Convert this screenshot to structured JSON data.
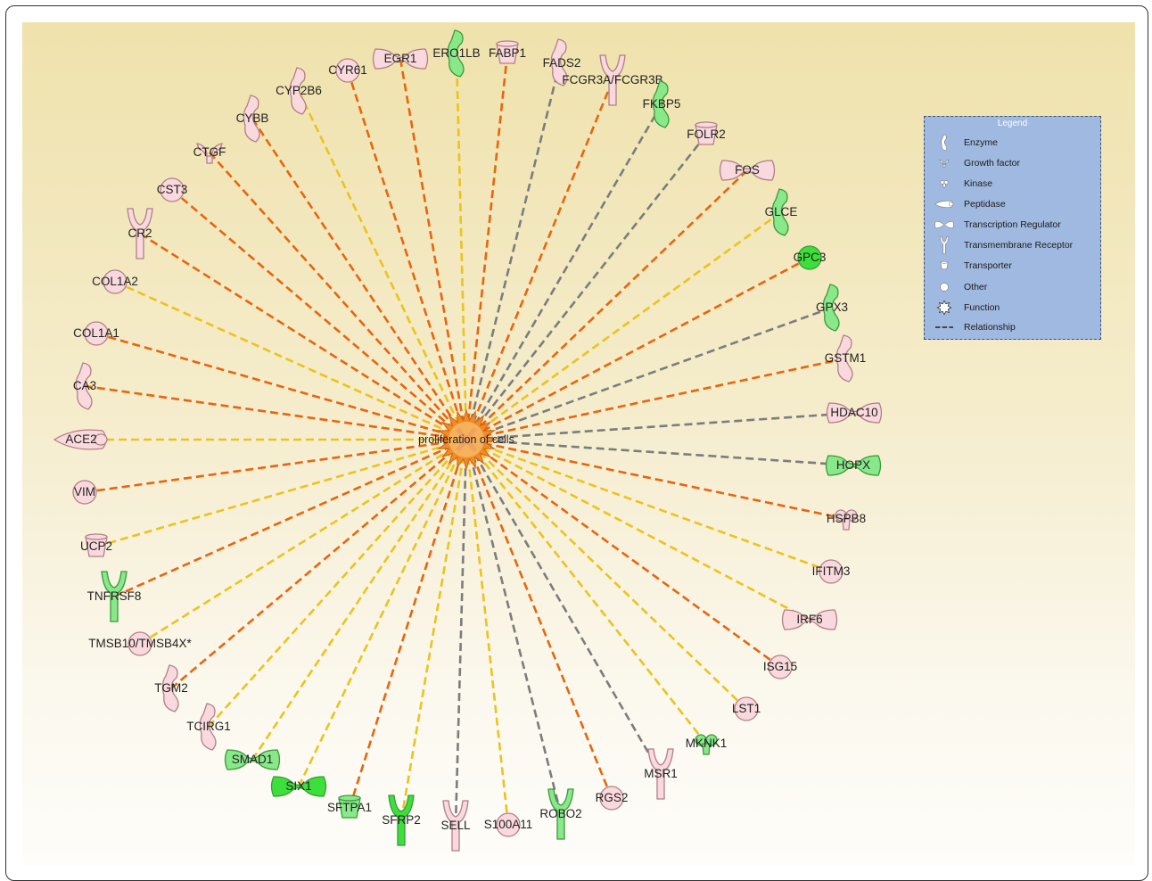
{
  "center": {
    "label": "proliferation of cells"
  },
  "colors": {
    "orange": "#e8650d",
    "yellow": "#ecc31c",
    "gray": "#7c7c7c",
    "pink_fill": "#f9d9dd",
    "pink_stroke": "#b08088",
    "green_fill": "#88e88a",
    "green_stroke": "#3a9a3a",
    "bright_green": "#3de03a"
  },
  "nodes": [
    {
      "label": "EGR1",
      "shape": "tr",
      "color": "pink",
      "edge": "orange"
    },
    {
      "label": "ERO1LB",
      "shape": "enzyme",
      "color": "green",
      "edge": "yellow"
    },
    {
      "label": "FABP1",
      "shape": "transporter",
      "color": "pink",
      "edge": "orange"
    },
    {
      "label": "FADS2",
      "shape": "enzyme",
      "color": "pink",
      "edge": "gray"
    },
    {
      "label": "FCGR3A/FCGR3B",
      "shape": "receptor",
      "color": "pink",
      "edge": "orange"
    },
    {
      "label": "FKBP5",
      "shape": "enzyme",
      "color": "green",
      "edge": "gray"
    },
    {
      "label": "FOLR2",
      "shape": "transporter",
      "color": "pink",
      "edge": "gray"
    },
    {
      "label": "FOS",
      "shape": "tr",
      "color": "pink",
      "edge": "orange"
    },
    {
      "label": "GLCE",
      "shape": "enzyme",
      "color": "green",
      "edge": "yellow"
    },
    {
      "label": "GPC3",
      "shape": "other",
      "color": "brightgreen",
      "edge": "orange"
    },
    {
      "label": "GPX3",
      "shape": "enzyme",
      "color": "green",
      "edge": "gray"
    },
    {
      "label": "GSTM1",
      "shape": "enzyme",
      "color": "pink",
      "edge": "orange"
    },
    {
      "label": "HDAC10",
      "shape": "tr",
      "color": "pink",
      "edge": "gray"
    },
    {
      "label": "HOPX",
      "shape": "tr",
      "color": "green",
      "edge": "gray"
    },
    {
      "label": "HSPB8",
      "shape": "kinase",
      "color": "pink",
      "edge": "orange"
    },
    {
      "label": "IFITM3",
      "shape": "other",
      "color": "pink",
      "edge": "yellow"
    },
    {
      "label": "IRF6",
      "shape": "tr",
      "color": "pink",
      "edge": "yellow"
    },
    {
      "label": "ISG15",
      "shape": "other",
      "color": "pink",
      "edge": "orange"
    },
    {
      "label": "LST1",
      "shape": "other",
      "color": "pink",
      "edge": "yellow"
    },
    {
      "label": "MKNK1",
      "shape": "kinase",
      "color": "green",
      "edge": "yellow"
    },
    {
      "label": "MSR1",
      "shape": "receptor",
      "color": "pink",
      "edge": "gray"
    },
    {
      "label": "RGS2",
      "shape": "other",
      "color": "pink",
      "edge": "orange"
    },
    {
      "label": "ROBO2",
      "shape": "receptor",
      "color": "green",
      "edge": "gray"
    },
    {
      "label": "S100A11",
      "shape": "other",
      "color": "pink",
      "edge": "yellow"
    },
    {
      "label": "SELL",
      "shape": "receptor",
      "color": "pink",
      "edge": "gray"
    },
    {
      "label": "SFRP2",
      "shape": "receptor",
      "color": "brightgreen",
      "edge": "yellow"
    },
    {
      "label": "SFTPA1",
      "shape": "transporter",
      "color": "green",
      "edge": "orange"
    },
    {
      "label": "SIX1",
      "shape": "tr",
      "color": "brightgreen",
      "edge": "yellow"
    },
    {
      "label": "SMAD1",
      "shape": "tr",
      "color": "green",
      "edge": "yellow"
    },
    {
      "label": "TCIRG1",
      "shape": "enzyme",
      "color": "pink",
      "edge": "yellow"
    },
    {
      "label": "TGM2",
      "shape": "enzyme",
      "color": "pink",
      "edge": "orange"
    },
    {
      "label": "TMSB10/TMSB4X*",
      "shape": "other",
      "color": "pink",
      "edge": "yellow"
    },
    {
      "label": "TNFRSF8",
      "shape": "receptor",
      "color": "green",
      "edge": "orange"
    },
    {
      "label": "UCP2",
      "shape": "transporter",
      "color": "pink",
      "edge": "yellow"
    },
    {
      "label": "VIM",
      "shape": "other",
      "color": "pink",
      "edge": "orange"
    },
    {
      "label": "ACE2",
      "shape": "peptidase",
      "color": "pink",
      "edge": "yellow"
    },
    {
      "label": "CA3",
      "shape": "enzyme",
      "color": "pink",
      "edge": "orange"
    },
    {
      "label": "COL1A1",
      "shape": "other",
      "color": "pink",
      "edge": "orange"
    },
    {
      "label": "COL1A2",
      "shape": "other",
      "color": "pink",
      "edge": "yellow"
    },
    {
      "label": "CR2",
      "shape": "receptor",
      "color": "pink",
      "edge": "orange"
    },
    {
      "label": "CST3",
      "shape": "other",
      "color": "pink",
      "edge": "orange"
    },
    {
      "label": "CTGF",
      "shape": "growth",
      "color": "pink",
      "edge": "orange"
    },
    {
      "label": "CYBB",
      "shape": "enzyme",
      "color": "pink",
      "edge": "orange"
    },
    {
      "label": "CYP2B6",
      "shape": "enzyme",
      "color": "pink",
      "edge": "yellow"
    },
    {
      "label": "CYR61",
      "shape": "other",
      "color": "pink",
      "edge": "orange"
    }
  ],
  "legend": {
    "title": "Legend",
    "items": [
      {
        "label": "Enzyme",
        "icon": "enzyme-icon"
      },
      {
        "label": "Growth factor",
        "icon": "growth-factor-icon"
      },
      {
        "label": "Kinase",
        "icon": "kinase-icon"
      },
      {
        "label": "Peptidase",
        "icon": "peptidase-icon"
      },
      {
        "label": "Transcription Regulator",
        "icon": "transcription-regulator-icon"
      },
      {
        "label": "Transmembrane Receptor",
        "icon": "transmembrane-receptor-icon"
      },
      {
        "label": "Transporter",
        "icon": "transporter-icon"
      },
      {
        "label": "Other",
        "icon": "other-circle-icon"
      },
      {
        "label": "Function",
        "icon": "function-star-icon"
      },
      {
        "label": "Relationship",
        "icon": "relationship-line-icon"
      }
    ]
  }
}
